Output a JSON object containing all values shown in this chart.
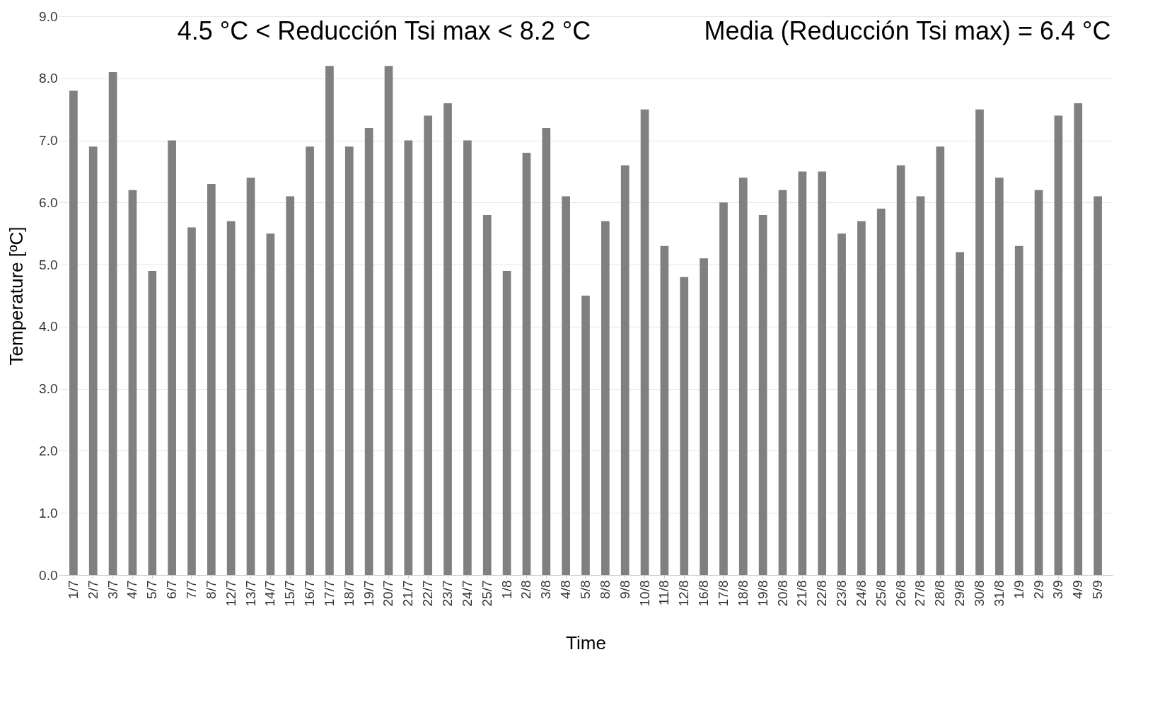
{
  "chart_data": {
    "type": "bar",
    "xlabel": "Time",
    "ylabel": "Temperature [ºC]",
    "annotations": [
      "4.5 °C < Reducción Tsi max < 8.2 °C",
      "Media (Reducción Tsi max) = 6.4 °C"
    ],
    "categories": [
      "1/7",
      "2/7",
      "3/7",
      "4/7",
      "5/7",
      "6/7",
      "7/7",
      "8/7",
      "12/7",
      "13/7",
      "14/7",
      "15/7",
      "16/7",
      "17/7",
      "18/7",
      "19/7",
      "20/7",
      "21/7",
      "22/7",
      "23/7",
      "24/7",
      "25/7",
      "1/8",
      "2/8",
      "3/8",
      "4/8",
      "5/8",
      "8/8",
      "9/8",
      "10/8",
      "11/8",
      "12/8",
      "16/8",
      "17/8",
      "18/8",
      "19/8",
      "20/8",
      "21/8",
      "22/8",
      "23/8",
      "24/8",
      "25/8",
      "26/8",
      "27/8",
      "28/8",
      "29/8",
      "30/8",
      "31/8",
      "1/9",
      "2/9",
      "3/9",
      "4/9",
      "5/9"
    ],
    "values": [
      7.8,
      6.9,
      8.1,
      6.2,
      4.9,
      7.0,
      5.6,
      6.3,
      5.7,
      6.4,
      5.5,
      6.1,
      6.9,
      8.2,
      6.9,
      7.2,
      8.2,
      7.0,
      7.4,
      7.6,
      7.0,
      5.8,
      4.9,
      6.8,
      7.2,
      6.1,
      4.5,
      5.7,
      6.6,
      7.5,
      5.3,
      4.8,
      5.1,
      6.0,
      6.4,
      5.8,
      6.2,
      6.5,
      6.5,
      5.5,
      5.7,
      5.9,
      6.6,
      6.1,
      6.9,
      5.2,
      7.5,
      6.4,
      5.3,
      6.2,
      7.4,
      7.6,
      6.1
    ],
    "color": "#808080",
    "ylim": [
      0,
      9
    ],
    "yticks": [
      {
        "value": 0,
        "label": "0.0"
      },
      {
        "value": 1,
        "label": "1.0"
      },
      {
        "value": 2,
        "label": "2.0"
      },
      {
        "value": 3,
        "label": "3.0"
      },
      {
        "value": 4,
        "label": "4.0"
      },
      {
        "value": 5,
        "label": "5.0"
      },
      {
        "value": 6,
        "label": "6.0"
      },
      {
        "value": 7,
        "label": "7.0"
      },
      {
        "value": 8,
        "label": "8.0"
      },
      {
        "value": 9,
        "label": "9.0"
      }
    ],
    "grid": "y"
  }
}
